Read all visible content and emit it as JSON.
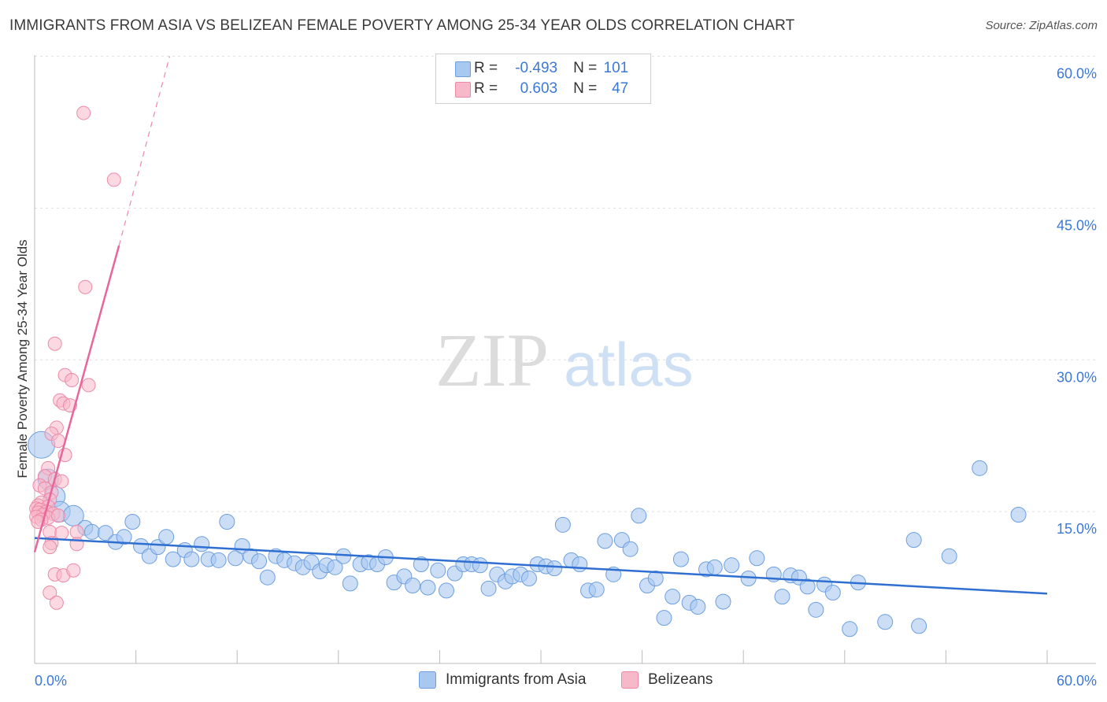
{
  "title": "IMMIGRANTS FROM ASIA VS BELIZEAN FEMALE POVERTY AMONG 25-34 YEAR OLDS CORRELATION CHART",
  "source": "Source: ZipAtlas.com",
  "watermark": {
    "zip": "ZIP",
    "atlas": "atlas"
  },
  "legend": {
    "rows": [
      {
        "r_label": "R =",
        "r_value": "-0.493",
        "n_label": "N =",
        "n_value": "101"
      },
      {
        "r_label": "R =",
        "r_value": "0.603",
        "n_label": "N =",
        "n_value": "47"
      }
    ]
  },
  "bottom_legend": {
    "series1": "Immigrants from Asia",
    "series2": "Belizeans"
  },
  "colors": {
    "blue_fill": "#a9c8f0",
    "blue_stroke": "#6d9fe0",
    "blue_line": "#2f6fd1",
    "pink_fill": "#f7b8ca",
    "pink_stroke": "#ec8aa7",
    "pink_line": "#e8669a",
    "axis_text": "#3b78d8",
    "grid": "#dddddd"
  },
  "chart_data": {
    "type": "scatter",
    "title": "IMMIGRANTS FROM ASIA VS BELIZEAN FEMALE POVERTY AMONG 25-34 YEAR OLDS CORRELATION CHART",
    "xlabel": "",
    "ylabel": "Female Poverty Among 25-34 Year Olds",
    "xlim": [
      0,
      60
    ],
    "ylim": [
      0,
      63
    ],
    "x_tick_labels": {
      "min": "0.0%",
      "max": "60.0%"
    },
    "y_ticks": [
      15,
      30,
      45,
      60
    ],
    "y_tick_labels": [
      "15.0%",
      "30.0%",
      "45.0%",
      "60.0%"
    ],
    "series": [
      {
        "name": "Immigrants from Asia",
        "r": -0.493,
        "n": 101,
        "trend": {
          "x0": 0,
          "y0": 12.4,
          "x1": 60,
          "y1": 6.9
        },
        "points": [
          [
            0.4,
            21.6,
            3
          ],
          [
            0.8,
            18.2,
            2
          ],
          [
            1.2,
            16.5,
            2
          ],
          [
            1.5,
            15.0,
            2
          ],
          [
            2.3,
            14.6,
            2
          ],
          [
            3.0,
            13.4,
            1
          ],
          [
            3.4,
            13.0,
            1
          ],
          [
            4.2,
            12.9,
            1
          ],
          [
            4.8,
            12.0,
            1
          ],
          [
            5.3,
            12.5,
            1
          ],
          [
            5.8,
            14.0,
            1
          ],
          [
            6.3,
            11.6,
            1
          ],
          [
            6.8,
            10.6,
            1
          ],
          [
            7.3,
            11.5,
            1
          ],
          [
            7.8,
            12.5,
            1
          ],
          [
            8.2,
            10.3,
            1
          ],
          [
            8.9,
            11.2,
            1
          ],
          [
            9.3,
            10.3,
            1
          ],
          [
            9.9,
            11.8,
            1
          ],
          [
            10.3,
            10.3,
            1
          ],
          [
            10.9,
            10.2,
            1
          ],
          [
            11.4,
            14.0,
            1
          ],
          [
            11.9,
            10.4,
            1
          ],
          [
            12.3,
            11.6,
            1
          ],
          [
            12.8,
            10.6,
            1
          ],
          [
            13.3,
            10.1,
            1
          ],
          [
            13.8,
            8.5,
            1
          ],
          [
            14.3,
            10.6,
            1
          ],
          [
            14.8,
            10.2,
            1
          ],
          [
            15.4,
            9.9,
            1
          ],
          [
            15.9,
            9.5,
            1
          ],
          [
            16.4,
            10.0,
            1
          ],
          [
            16.9,
            9.1,
            1
          ],
          [
            17.3,
            9.7,
            1
          ],
          [
            17.8,
            9.5,
            1
          ],
          [
            18.3,
            10.6,
            1
          ],
          [
            18.7,
            7.9,
            1
          ],
          [
            19.3,
            9.8,
            1
          ],
          [
            19.8,
            10.0,
            1
          ],
          [
            20.3,
            9.8,
            1
          ],
          [
            20.8,
            10.5,
            1
          ],
          [
            21.3,
            8.0,
            1
          ],
          [
            21.9,
            8.6,
            1
          ],
          [
            22.4,
            7.7,
            1
          ],
          [
            22.9,
            9.8,
            1
          ],
          [
            23.3,
            7.5,
            1
          ],
          [
            23.9,
            9.2,
            1
          ],
          [
            24.4,
            7.2,
            1
          ],
          [
            24.9,
            8.9,
            1
          ],
          [
            25.4,
            9.8,
            1
          ],
          [
            25.9,
            9.8,
            1
          ],
          [
            26.4,
            9.7,
            1
          ],
          [
            26.9,
            7.4,
            1
          ],
          [
            27.4,
            8.8,
            1
          ],
          [
            27.9,
            8.1,
            1
          ],
          [
            28.3,
            8.6,
            1
          ],
          [
            28.8,
            8.8,
            1
          ],
          [
            29.3,
            8.4,
            1
          ],
          [
            29.8,
            9.8,
            1
          ],
          [
            30.3,
            9.6,
            1
          ],
          [
            30.8,
            9.4,
            1
          ],
          [
            31.3,
            13.7,
            1
          ],
          [
            31.8,
            10.2,
            1
          ],
          [
            32.3,
            9.8,
            1
          ],
          [
            32.8,
            7.2,
            1
          ],
          [
            33.3,
            7.3,
            1
          ],
          [
            33.8,
            12.1,
            1
          ],
          [
            34.3,
            8.8,
            1
          ],
          [
            34.8,
            12.2,
            1
          ],
          [
            35.3,
            11.3,
            1
          ],
          [
            35.8,
            14.6,
            1
          ],
          [
            36.3,
            7.7,
            1
          ],
          [
            36.8,
            8.4,
            1
          ],
          [
            37.3,
            4.5,
            1
          ],
          [
            37.8,
            6.6,
            1
          ],
          [
            38.3,
            10.3,
            1
          ],
          [
            38.8,
            6.0,
            1
          ],
          [
            39.3,
            5.6,
            1
          ],
          [
            39.8,
            9.3,
            1
          ],
          [
            40.3,
            9.5,
            1
          ],
          [
            40.8,
            6.1,
            1
          ],
          [
            41.3,
            9.7,
            1
          ],
          [
            42.3,
            8.4,
            1
          ],
          [
            42.8,
            10.4,
            1
          ],
          [
            43.8,
            8.8,
            1
          ],
          [
            44.3,
            6.6,
            1
          ],
          [
            44.8,
            8.7,
            1
          ],
          [
            45.3,
            8.5,
            1
          ],
          [
            45.8,
            7.6,
            1
          ],
          [
            46.3,
            5.3,
            1
          ],
          [
            46.8,
            7.8,
            1
          ],
          [
            47.3,
            7.0,
            1
          ],
          [
            48.3,
            3.4,
            1
          ],
          [
            48.8,
            8.0,
            1
          ],
          [
            50.4,
            4.1,
            1
          ],
          [
            52.1,
            12.2,
            1
          ],
          [
            52.4,
            3.7,
            1
          ],
          [
            54.2,
            10.6,
            1
          ],
          [
            56.0,
            19.3,
            1
          ],
          [
            58.3,
            14.7,
            1
          ]
        ]
      },
      {
        "name": "Belizeans",
        "r": 0.603,
        "n": 47,
        "trend": {
          "x0": 0,
          "y0": 11.0,
          "x1": 5.0,
          "y1": 41.3,
          "dash_x1": 8.0,
          "dash_y1": 60.0
        },
        "points": [
          [
            2.9,
            54.4
          ],
          [
            4.7,
            47.8
          ],
          [
            3.0,
            37.2
          ],
          [
            1.2,
            31.6
          ],
          [
            1.8,
            28.5
          ],
          [
            2.2,
            28.0
          ],
          [
            3.2,
            27.5
          ],
          [
            1.5,
            26.0
          ],
          [
            1.7,
            25.7
          ],
          [
            2.1,
            25.5
          ],
          [
            1.3,
            23.3
          ],
          [
            1.0,
            22.7
          ],
          [
            1.4,
            22.0
          ],
          [
            1.8,
            20.6
          ],
          [
            0.8,
            19.3
          ],
          [
            0.6,
            18.5
          ],
          [
            1.2,
            18.2
          ],
          [
            1.6,
            18.0
          ],
          [
            0.3,
            17.6
          ],
          [
            0.6,
            17.3
          ],
          [
            1.0,
            16.9
          ],
          [
            0.9,
            16.2
          ],
          [
            0.4,
            15.9
          ],
          [
            0.2,
            15.6
          ],
          [
            0.8,
            15.5
          ],
          [
            0.1,
            15.3
          ],
          [
            0.3,
            15.2
          ],
          [
            0.7,
            15.0
          ],
          [
            0.2,
            14.9
          ],
          [
            1.1,
            14.8
          ],
          [
            0.5,
            14.7
          ],
          [
            0.1,
            14.5
          ],
          [
            0.8,
            14.4
          ],
          [
            0.4,
            14.2
          ],
          [
            1.4,
            14.6
          ],
          [
            0.2,
            14.0
          ],
          [
            0.9,
            13.0
          ],
          [
            1.6,
            12.9
          ],
          [
            2.5,
            13.0
          ],
          [
            1.0,
            11.9
          ],
          [
            2.5,
            11.8
          ],
          [
            0.9,
            11.5
          ],
          [
            1.2,
            8.8
          ],
          [
            1.7,
            8.7
          ],
          [
            2.3,
            9.2
          ],
          [
            0.9,
            7.0
          ],
          [
            1.3,
            6.0
          ]
        ]
      }
    ]
  }
}
